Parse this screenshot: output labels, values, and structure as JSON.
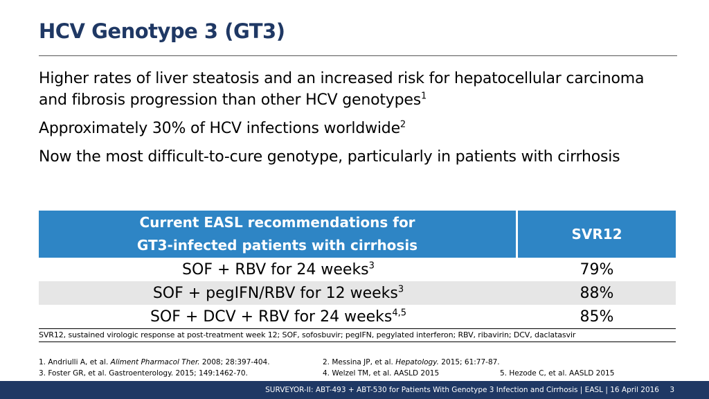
{
  "title": "HCV Genotype 3 (GT3)",
  "bullets": [
    {
      "text": "Higher rates of liver steatosis and an increased risk for hepatocellular carcinoma and fibrosis progression than other HCV genotypes",
      "sup": "1"
    },
    {
      "text": "Approximately 30% of HCV infections worldwide",
      "sup": "2"
    },
    {
      "text": "Now the most difficult-to-cure genotype, particularly in patients with cirrhosis",
      "sup": ""
    }
  ],
  "table": {
    "header": {
      "col1_line1": "Current EASL recommendations for",
      "col1_line2": "GT3-infected patients with cirrhosis",
      "col2": "SVR12"
    },
    "rows": [
      {
        "regimen": "SOF + RBV for 24 weeks",
        "sup": "3",
        "svr": "79%"
      },
      {
        "regimen": "SOF + pegIFN/RBV for 12 weeks",
        "sup": "3",
        "svr": "88%"
      },
      {
        "regimen": "SOF + DCV + RBV for 24 weeks",
        "sup": "4,5",
        "svr": "85%"
      }
    ],
    "abbreviations": "SVR12, sustained virologic response at post-treatment week 12; SOF, sofosbuvir; pegIFN, pegylated interferon; RBV, ribavirin; DCV, daclatasvir"
  },
  "references": {
    "ref1_pre": "1. Andriulli A, et al. ",
    "ref1_journal": "Aliment Pharmacol Ther.",
    "ref1_post": " 2008; 28:397-404.",
    "ref2_pre": "2. Messina JP, et al. ",
    "ref2_journal": "Hepatology.",
    "ref2_post": " 2015; 61:77-87.",
    "ref3": "3. Foster GR, et al. Gastroenterology. 2015; 149:1462-70.",
    "ref4": "4. Welzel TM, et al. AASLD 2015",
    "ref5": "5. Hezode C, et al. AASLD 2015"
  },
  "footer": {
    "text": "SURVEYOR-II: ABT-493 + ABT-530 for Patients With Genotype 3 Infection and Cirrhosis  | EASL | 16 April 2016",
    "page": "3"
  }
}
